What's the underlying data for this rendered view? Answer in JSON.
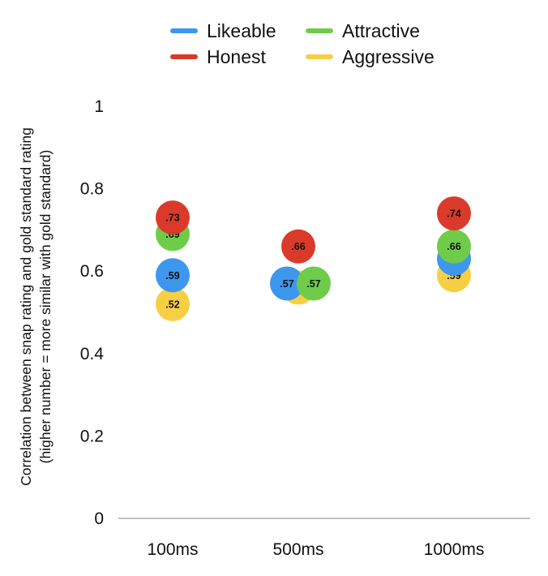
{
  "chart_data": {
    "type": "scatter",
    "title": "",
    "xlabel": "",
    "ylabel_line1": "Correlation between snap rating and gold standard rating",
    "ylabel_line2": "(higher number = more similar with gold standard)",
    "ylim": [
      0,
      1
    ],
    "yticks": [
      "0",
      "0.2",
      "0.4",
      "0.6",
      "0.8",
      "1"
    ],
    "ytick_values": [
      0,
      0.2,
      0.4,
      0.6,
      0.8,
      1
    ],
    "categories": [
      "100ms",
      "500ms",
      "1000ms"
    ],
    "legend_position": "top",
    "series": [
      {
        "name": "Likeable",
        "color": "#3d97ee",
        "values": [
          0.59,
          0.57,
          0.63
        ],
        "labels": [
          ".59",
          ".57",
          ".63"
        ]
      },
      {
        "name": "Attractive",
        "color": "#6fcc4a",
        "values": [
          0.69,
          0.57,
          0.66
        ],
        "labels": [
          ".69",
          ".57",
          ".66"
        ]
      },
      {
        "name": "Honest",
        "color": "#db3a2a",
        "values": [
          0.73,
          0.66,
          0.74
        ],
        "labels": [
          ".73",
          ".66",
          ".74"
        ]
      },
      {
        "name": "Aggressive",
        "color": "#f7cf45",
        "values": [
          0.52,
          0.56,
          0.59
        ],
        "labels": [
          ".52",
          ".56",
          ".59"
        ]
      }
    ]
  }
}
